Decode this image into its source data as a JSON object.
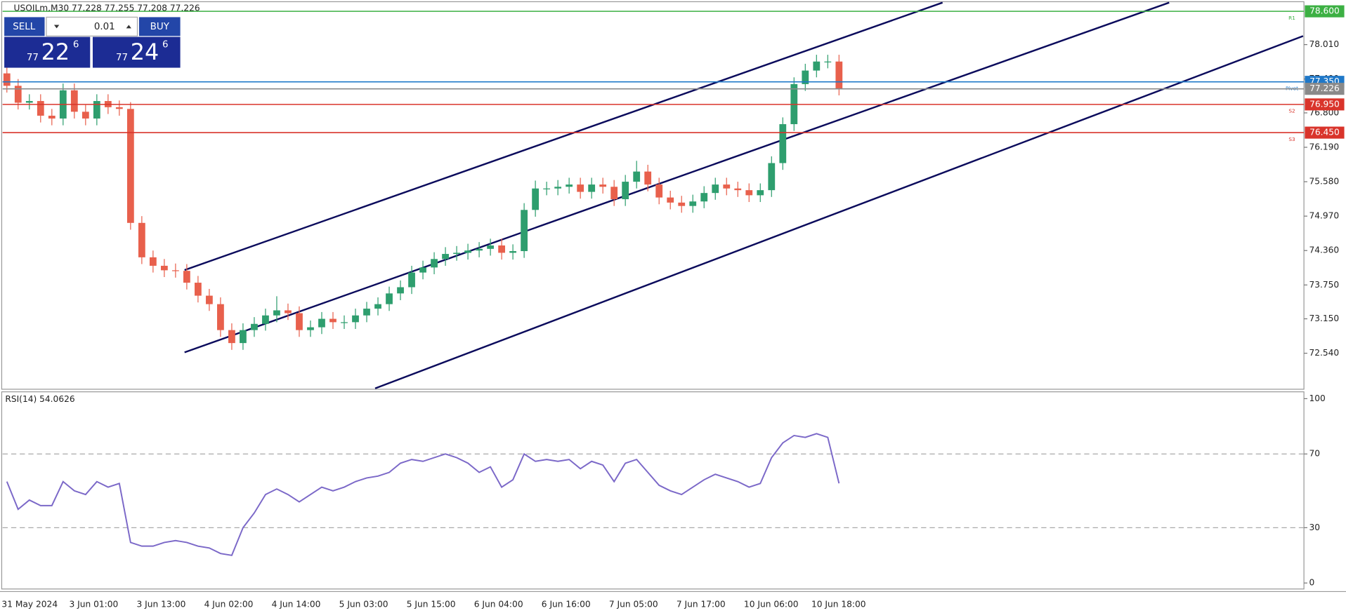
{
  "chart_data": [
    {
      "type": "candlestick",
      "title": "USOILm,M30  77.228 77.255 77.208 77.226",
      "categories": [
        "31 May 2024",
        null,
        null,
        null,
        null,
        null,
        "3 Jun 01:00",
        null,
        null,
        null,
        null,
        null,
        "3 Jun 13:00",
        null,
        null,
        null,
        null,
        null,
        "4 Jun 02:00",
        null,
        null,
        null,
        null,
        null,
        "4 Jun 14:00",
        null,
        null,
        null,
        null,
        null,
        "5 Jun 03:00",
        null,
        null,
        null,
        null,
        null,
        "5 Jun 15:00",
        null,
        null,
        null,
        null,
        null,
        "6 Jun 04:00",
        null,
        null,
        null,
        null,
        null,
        "6 Jun 16:00",
        null,
        null,
        null,
        null,
        null,
        "7 Jun 05:00",
        null,
        null,
        null,
        null,
        null,
        "7 Jun 17:00",
        null,
        null,
        null,
        null,
        null,
        "10 Jun 06:00",
        null,
        null,
        null,
        null,
        null,
        "10 Jun 18:00",
        null,
        null
      ],
      "open": [
        77.5,
        77.28,
        76.98,
        77.01,
        76.75,
        76.7,
        77.2,
        76.82,
        76.7,
        77.01,
        76.9,
        76.87,
        74.85,
        74.24,
        74.09,
        74.01,
        74.0,
        73.79,
        73.56,
        73.41,
        72.95,
        72.72,
        72.95,
        73.06,
        73.21,
        73.3,
        73.25,
        72.95,
        73.0,
        73.15,
        73.09,
        73.09,
        73.21,
        73.33,
        73.41,
        73.6,
        73.71,
        73.97,
        74.06,
        74.21,
        74.3,
        74.32,
        74.36,
        74.39,
        74.45,
        74.32,
        74.35,
        75.08,
        75.46,
        75.46,
        75.49,
        75.53,
        75.4,
        75.53,
        75.49,
        75.27,
        75.58,
        75.76,
        75.53,
        75.3,
        75.21,
        75.15,
        75.23,
        75.38,
        75.53,
        75.46,
        75.43,
        75.34,
        75.43,
        75.91,
        76.6,
        77.31,
        77.55,
        77.71,
        77.71
      ],
      "high": [
        77.62,
        77.4,
        77.13,
        77.13,
        76.87,
        77.32,
        77.32,
        76.94,
        77.13,
        77.13,
        77.02,
        76.99,
        74.97,
        74.36,
        74.21,
        74.13,
        74.12,
        73.91,
        73.68,
        73.53,
        73.07,
        73.07,
        73.18,
        73.33,
        73.55,
        73.42,
        73.37,
        73.12,
        73.27,
        73.27,
        73.21,
        73.33,
        73.45,
        73.53,
        73.72,
        73.83,
        74.09,
        74.18,
        74.33,
        74.42,
        74.44,
        74.48,
        74.51,
        74.57,
        74.57,
        74.47,
        75.2,
        75.6,
        75.58,
        75.61,
        75.65,
        75.65,
        75.65,
        75.65,
        75.61,
        75.7,
        75.95,
        75.88,
        75.65,
        75.42,
        75.33,
        75.35,
        75.5,
        75.65,
        75.65,
        75.58,
        75.55,
        75.55,
        76.03,
        76.72,
        77.43,
        77.67,
        77.83,
        77.83,
        77.83
      ],
      "low": [
        77.16,
        76.86,
        76.86,
        76.63,
        76.58,
        76.58,
        76.7,
        76.58,
        76.58,
        76.78,
        76.75,
        74.73,
        74.12,
        73.97,
        73.89,
        73.88,
        73.67,
        73.44,
        73.29,
        72.83,
        72.6,
        72.6,
        72.83,
        72.94,
        73.09,
        73.13,
        72.83,
        72.83,
        72.88,
        72.97,
        72.97,
        72.97,
        73.09,
        73.21,
        73.29,
        73.48,
        73.59,
        73.85,
        73.94,
        74.09,
        74.18,
        74.2,
        74.24,
        74.27,
        74.2,
        74.2,
        74.23,
        74.96,
        75.34,
        75.34,
        75.37,
        75.28,
        75.28,
        75.37,
        75.15,
        75.15,
        75.46,
        75.41,
        75.18,
        75.09,
        75.03,
        75.03,
        75.11,
        75.26,
        75.34,
        75.31,
        75.22,
        75.22,
        75.31,
        75.79,
        76.48,
        77.19,
        77.43,
        77.59,
        77.11
      ],
      "close": [
        77.28,
        76.98,
        77.01,
        76.75,
        76.7,
        77.2,
        76.82,
        76.7,
        77.01,
        76.9,
        76.87,
        74.85,
        74.24,
        74.09,
        74.01,
        74.0,
        73.79,
        73.56,
        73.41,
        72.95,
        72.72,
        72.95,
        73.06,
        73.21,
        73.3,
        73.25,
        72.95,
        73.0,
        73.15,
        73.09,
        73.09,
        73.21,
        73.33,
        73.41,
        73.6,
        73.71,
        73.97,
        74.06,
        74.21,
        74.3,
        74.32,
        74.36,
        74.39,
        74.45,
        74.32,
        74.35,
        75.08,
        75.46,
        75.46,
        75.49,
        75.53,
        75.4,
        75.53,
        75.49,
        75.27,
        75.58,
        75.76,
        75.53,
        75.3,
        75.21,
        75.15,
        75.23,
        75.38,
        75.53,
        75.46,
        75.43,
        75.34,
        75.43,
        75.91,
        76.6,
        77.31,
        77.55,
        77.71,
        77.71,
        77.23
      ],
      "up_color": "#2e9e6e",
      "down_color": "#e8604c",
      "ylim": [
        71.917,
        78.755
      ],
      "yticks": [
        {
          "value": 78.01,
          "label": "78.010"
        },
        {
          "value": 77.4,
          "label": "77.400"
        },
        {
          "value": 76.8,
          "label": "76.800"
        },
        {
          "value": 76.19,
          "label": "76.190"
        },
        {
          "value": 75.58,
          "label": "75.580"
        },
        {
          "value": 74.97,
          "label": "74.970"
        },
        {
          "value": 74.36,
          "label": "74.360"
        },
        {
          "value": 73.75,
          "label": "73.750"
        },
        {
          "value": 73.15,
          "label": "73.150"
        },
        {
          "value": 72.54,
          "label": "72.540"
        }
      ],
      "levels": [
        {
          "value": 78.6,
          "label": "78.600",
          "color": "#3cb043",
          "name": "R1"
        },
        {
          "value": 76.95,
          "label": "76.950",
          "color": "#d9342b",
          "name": "S2"
        },
        {
          "value": 76.45,
          "label": "76.450",
          "color": "#d9342b",
          "name": "S3"
        },
        {
          "value": 77.35,
          "label": "77.350",
          "color": "#1f78c8",
          "name": "Pivot"
        },
        {
          "value": 77.226,
          "label": "77.226",
          "color": "#8a8a8a"
        }
      ]
    },
    {
      "type": "line",
      "title": "RSI(14) 54.0626",
      "series": [
        {
          "color": "#7b68c8",
          "values": [
            55,
            40,
            45,
            42,
            42,
            55,
            50,
            48,
            55,
            52,
            54,
            22,
            20,
            20,
            22,
            23,
            22,
            20,
            19,
            16,
            15,
            30,
            38,
            48,
            51,
            48,
            44,
            48,
            52,
            50,
            52,
            55,
            57,
            58,
            60,
            65,
            67,
            66,
            68,
            70,
            68,
            65,
            60,
            63,
            52,
            56,
            70,
            66,
            67,
            66,
            67,
            62,
            66,
            64,
            55,
            65,
            67,
            60,
            53,
            50,
            48,
            52,
            56,
            59,
            57,
            55,
            52,
            54,
            68,
            76,
            80,
            79,
            81,
            79,
            54.0626
          ]
        }
      ],
      "ylim": [
        0,
        100
      ],
      "yticks": [
        0,
        30,
        70,
        100
      ]
    }
  ],
  "trade_panel": {
    "sell": "SELL",
    "lot": "0.01",
    "buy": "BUY",
    "bid": {
      "big": "77",
      "main": "22",
      "sup": "6"
    },
    "ask": {
      "big": "77",
      "main": "24",
      "sup": "6"
    }
  }
}
